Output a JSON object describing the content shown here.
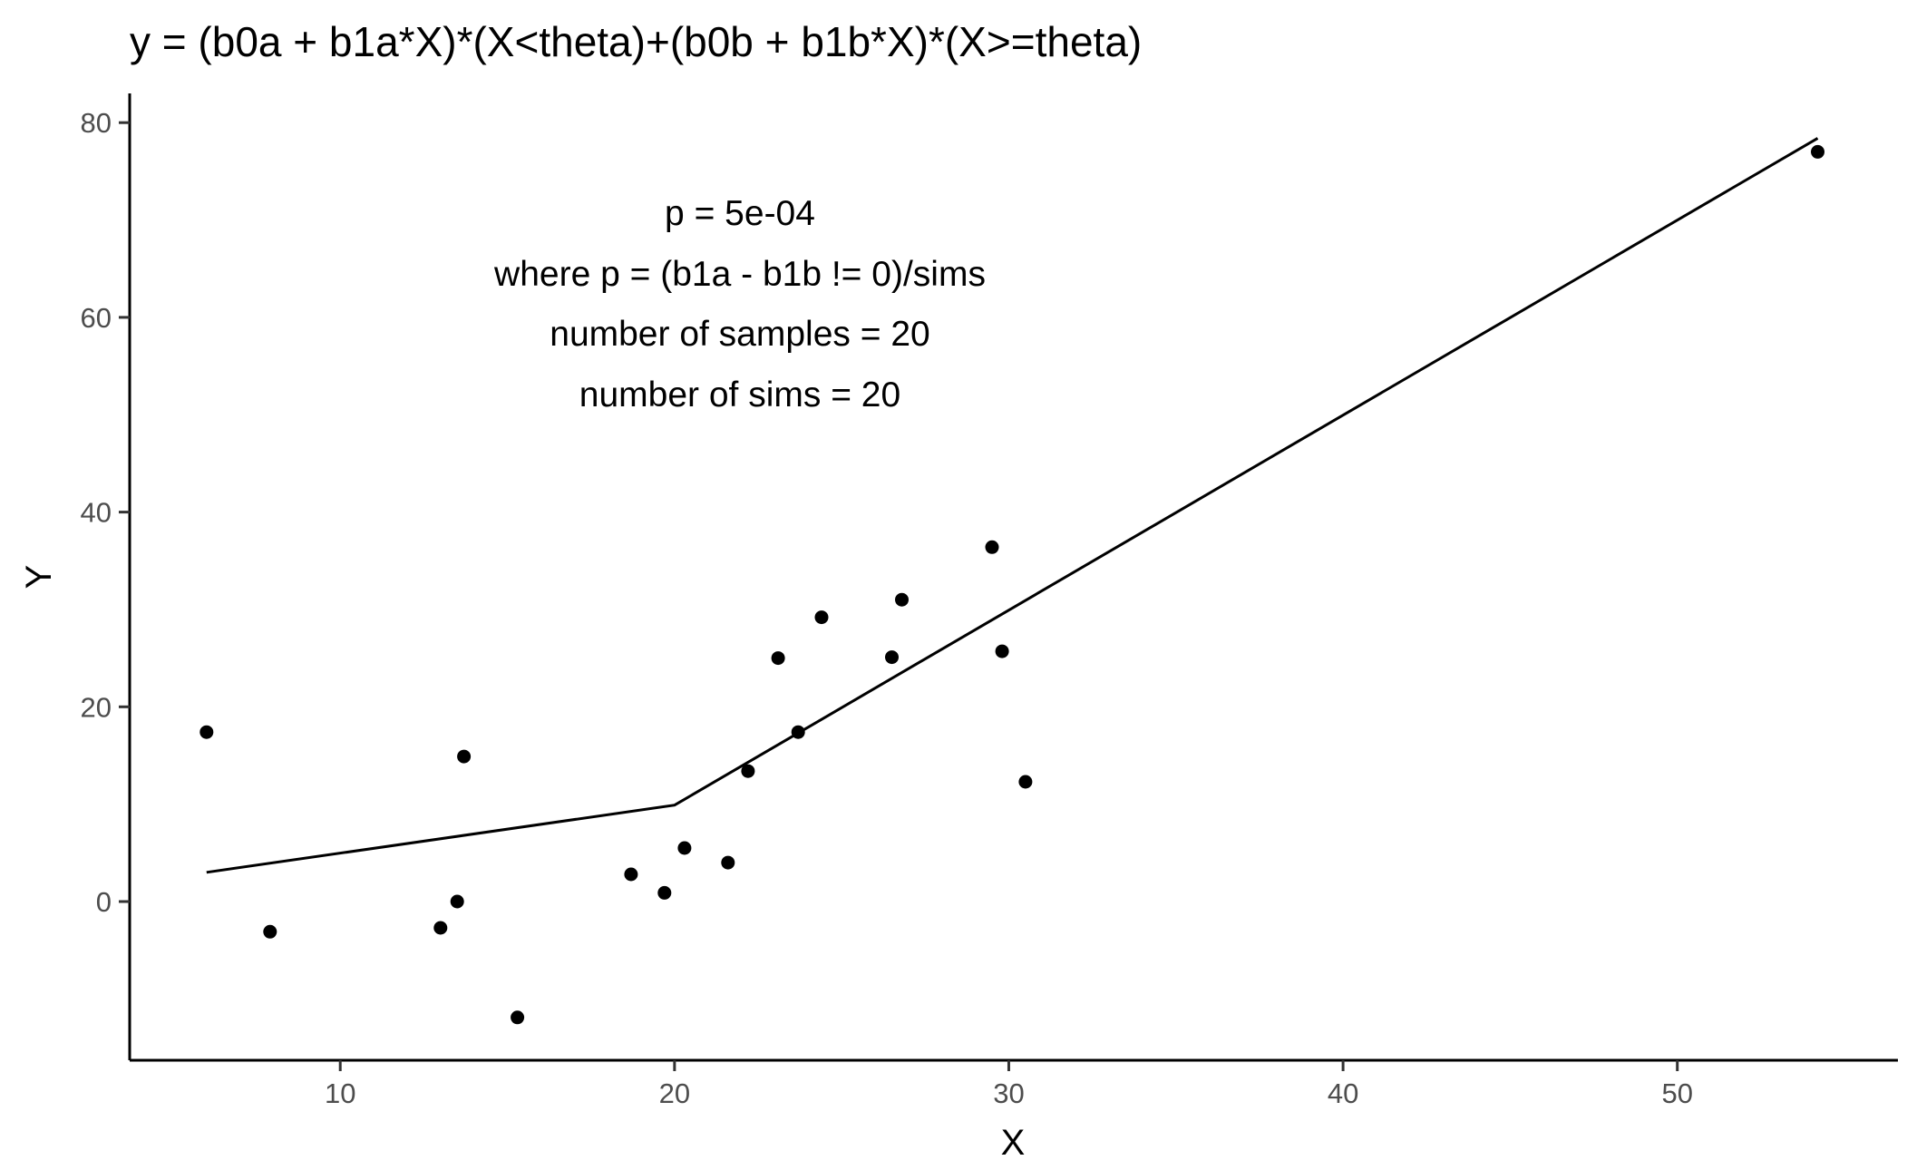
{
  "chart_data": {
    "type": "scatter",
    "title": "y = (b0a + b1a*X)*(X<theta)+(b0b + b1b*X)*(X>=theta)",
    "xlabel": "X",
    "ylabel": "Y",
    "xlim": [
      3.7,
      56.6
    ],
    "ylim": [
      -16.3,
      83.0
    ],
    "x_ticks": [
      10,
      20,
      30,
      40,
      50
    ],
    "y_ticks": [
      0,
      20,
      40,
      60,
      80
    ],
    "grid": false,
    "legend": "none",
    "annotation": [
      "p = 5e-04",
      "where p = (b1a - b1b != 0)/sims",
      "number of samples =  20",
      "number of sims =  20"
    ],
    "points": {
      "x": [
        6.0,
        7.9,
        13.0,
        13.5,
        13.7,
        15.3,
        18.7,
        19.7,
        20.3,
        21.6,
        22.2,
        23.1,
        23.7,
        24.4,
        26.5,
        26.8,
        29.5,
        29.8,
        30.5,
        54.2
      ],
      "y": [
        17.4,
        -3.1,
        -2.7,
        0.0,
        14.9,
        -11.9,
        2.8,
        0.9,
        5.5,
        4.0,
        13.4,
        25.0,
        17.4,
        29.2,
        25.1,
        31.0,
        36.4,
        25.7,
        12.3,
        77.0
      ]
    },
    "fit_line": {
      "x": [
        6.0,
        20.0,
        20.3,
        54.2
      ],
      "y": [
        3.0,
        9.9,
        10.5,
        78.4
      ]
    },
    "colors": {
      "points": "#000000",
      "line": "#000000",
      "tick_text": "#4d4d4d"
    }
  }
}
